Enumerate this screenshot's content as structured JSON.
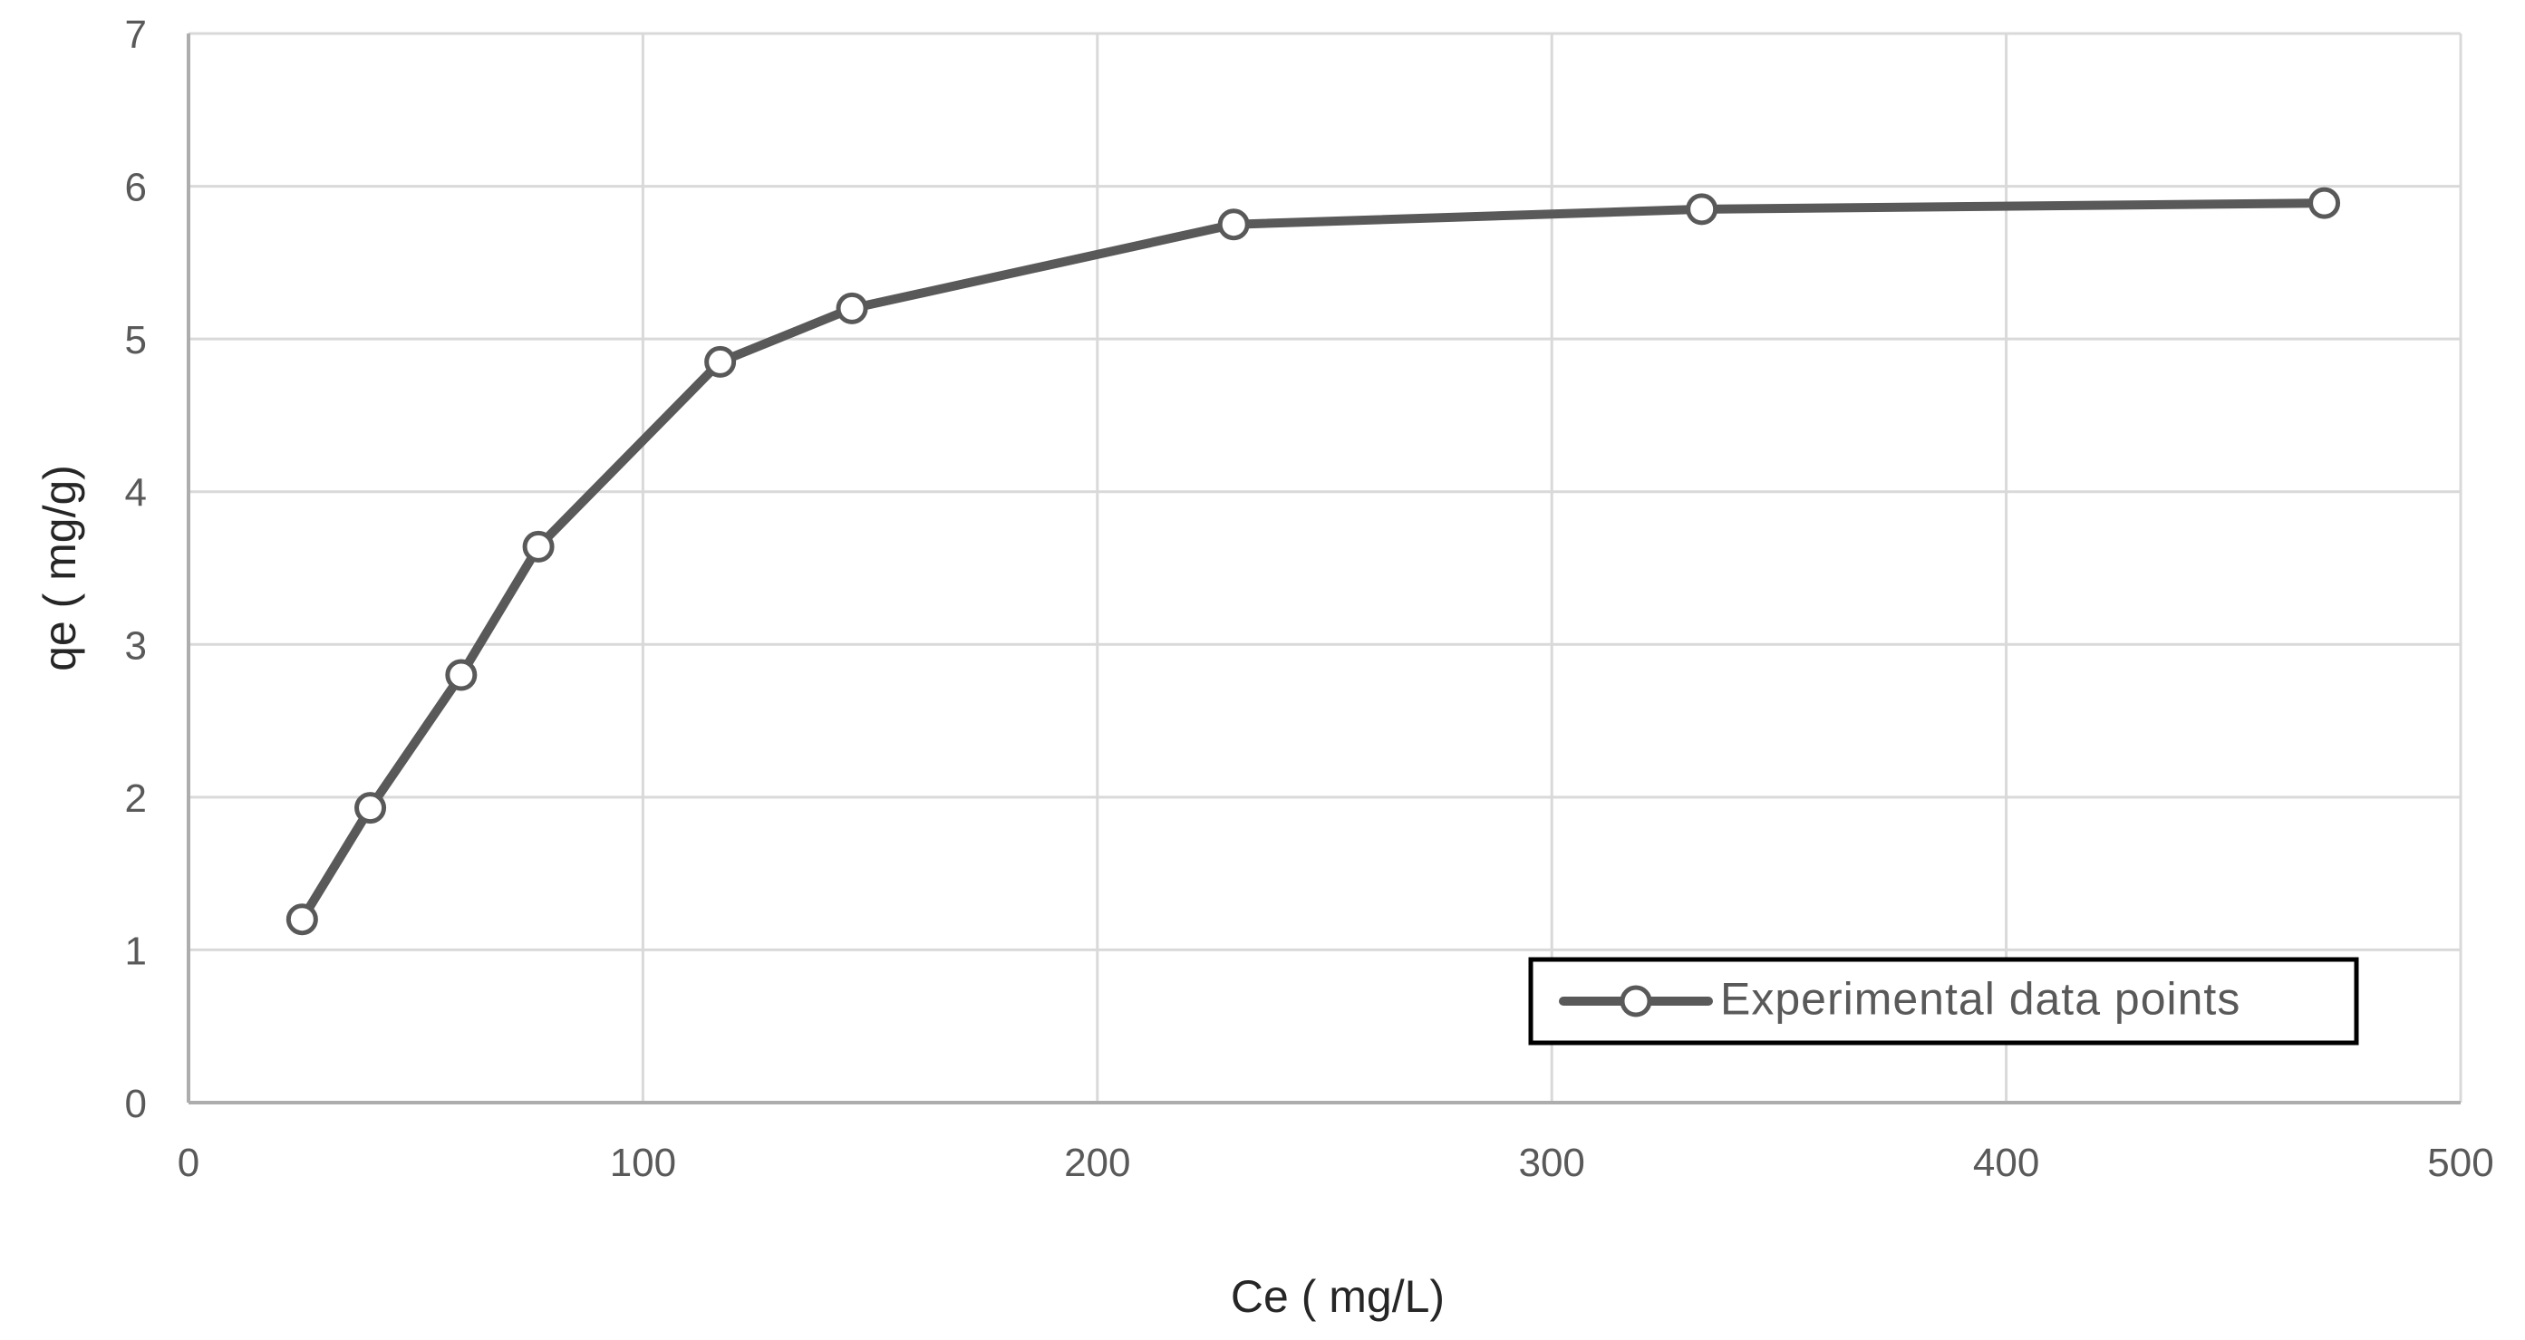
{
  "page": {
    "background_color": "#ffffff"
  },
  "chart_data": {
    "type": "line",
    "title": "",
    "xlabel": "Ce ( mg/L)",
    "ylabel": "qe ( mg/g)",
    "series": [
      {
        "name": "Experimental data points",
        "x": [
          25,
          40,
          60,
          77,
          117,
          146,
          230,
          333,
          470
        ],
        "y": [
          1.2,
          1.93,
          2.8,
          3.64,
          4.85,
          5.2,
          5.75,
          5.85,
          5.89
        ],
        "marker": "open-circle",
        "line_style": "solid"
      }
    ],
    "xlim": [
      0,
      500
    ],
    "ylim": [
      0,
      7
    ],
    "x_ticks": [
      0,
      100,
      200,
      300,
      400,
      500
    ],
    "y_ticks": [
      0,
      1,
      2,
      3,
      4,
      5,
      6,
      7
    ],
    "grid": true,
    "legend_position": "inside-bottom-right",
    "colors": {
      "line": "#595959",
      "marker_stroke": "#595959",
      "marker_fill": "#ffffff",
      "gridline": "#d9d9d9",
      "axis_line": "#adadad",
      "tick_label": "#595959",
      "axis_title": "#262626",
      "legend_border": "#000000",
      "legend_text": "#595959",
      "background": "#ffffff"
    }
  },
  "legend": {
    "label": "Experimental data points"
  }
}
